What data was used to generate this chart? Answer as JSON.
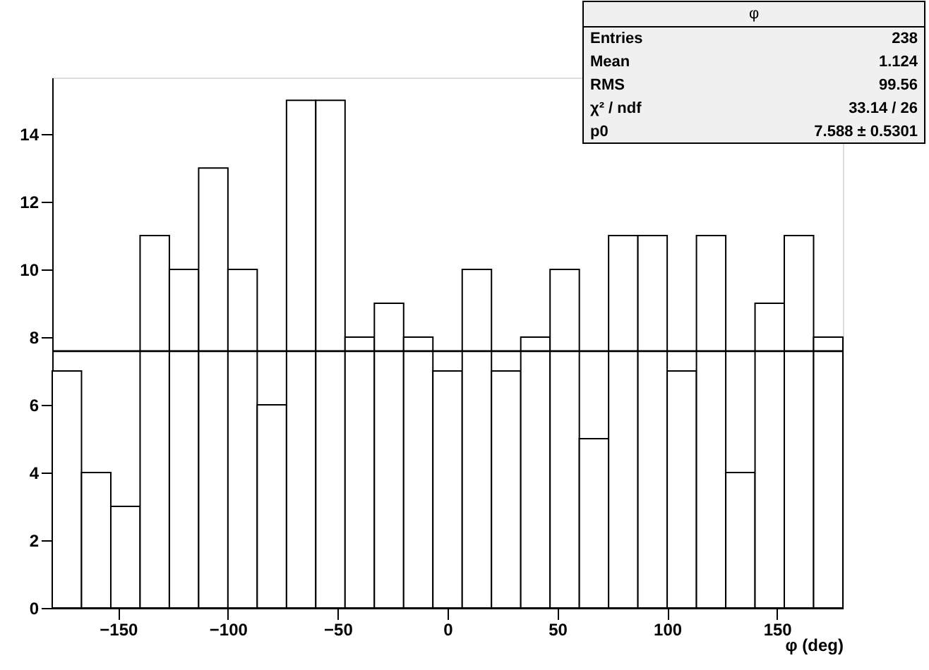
{
  "chart_data": {
    "type": "histogram",
    "bins": [
      -180,
      -166.67,
      -153.33,
      -140,
      -126.67,
      -113.33,
      -100,
      -86.67,
      -73.33,
      -60,
      -46.67,
      -33.33,
      -20,
      -6.67,
      6.67,
      20,
      33.33,
      46.67,
      60,
      73.33,
      86.67,
      100,
      113.33,
      126.67,
      140,
      153.33,
      166.67,
      180
    ],
    "values": [
      7,
      4,
      3,
      11,
      10,
      13,
      10,
      6,
      15,
      15,
      8,
      9,
      8,
      7,
      10,
      7,
      8,
      10,
      5,
      11,
      11,
      7,
      11,
      4,
      9,
      11,
      8
    ],
    "xlabel": "φ (deg)",
    "xlim": [
      -180,
      180
    ],
    "xticks": [
      -150,
      -100,
      -50,
      0,
      50,
      100,
      150
    ],
    "ylim": [
      0,
      15.67
    ],
    "yticks": [
      0,
      2,
      4,
      6,
      8,
      10,
      12,
      14
    ],
    "ref_lines": [
      {
        "axis": "y",
        "value": 7.588,
        "label": null,
        "color": "#000000"
      }
    ],
    "annotations": [
      "φ",
      "Entries",
      "238",
      "Mean",
      "1.124",
      "RMS",
      "99.56",
      "χ² / ndf",
      "33.14 / 26",
      "p0",
      "7.588 ± 0.5301"
    ],
    "grid": false
  }
}
